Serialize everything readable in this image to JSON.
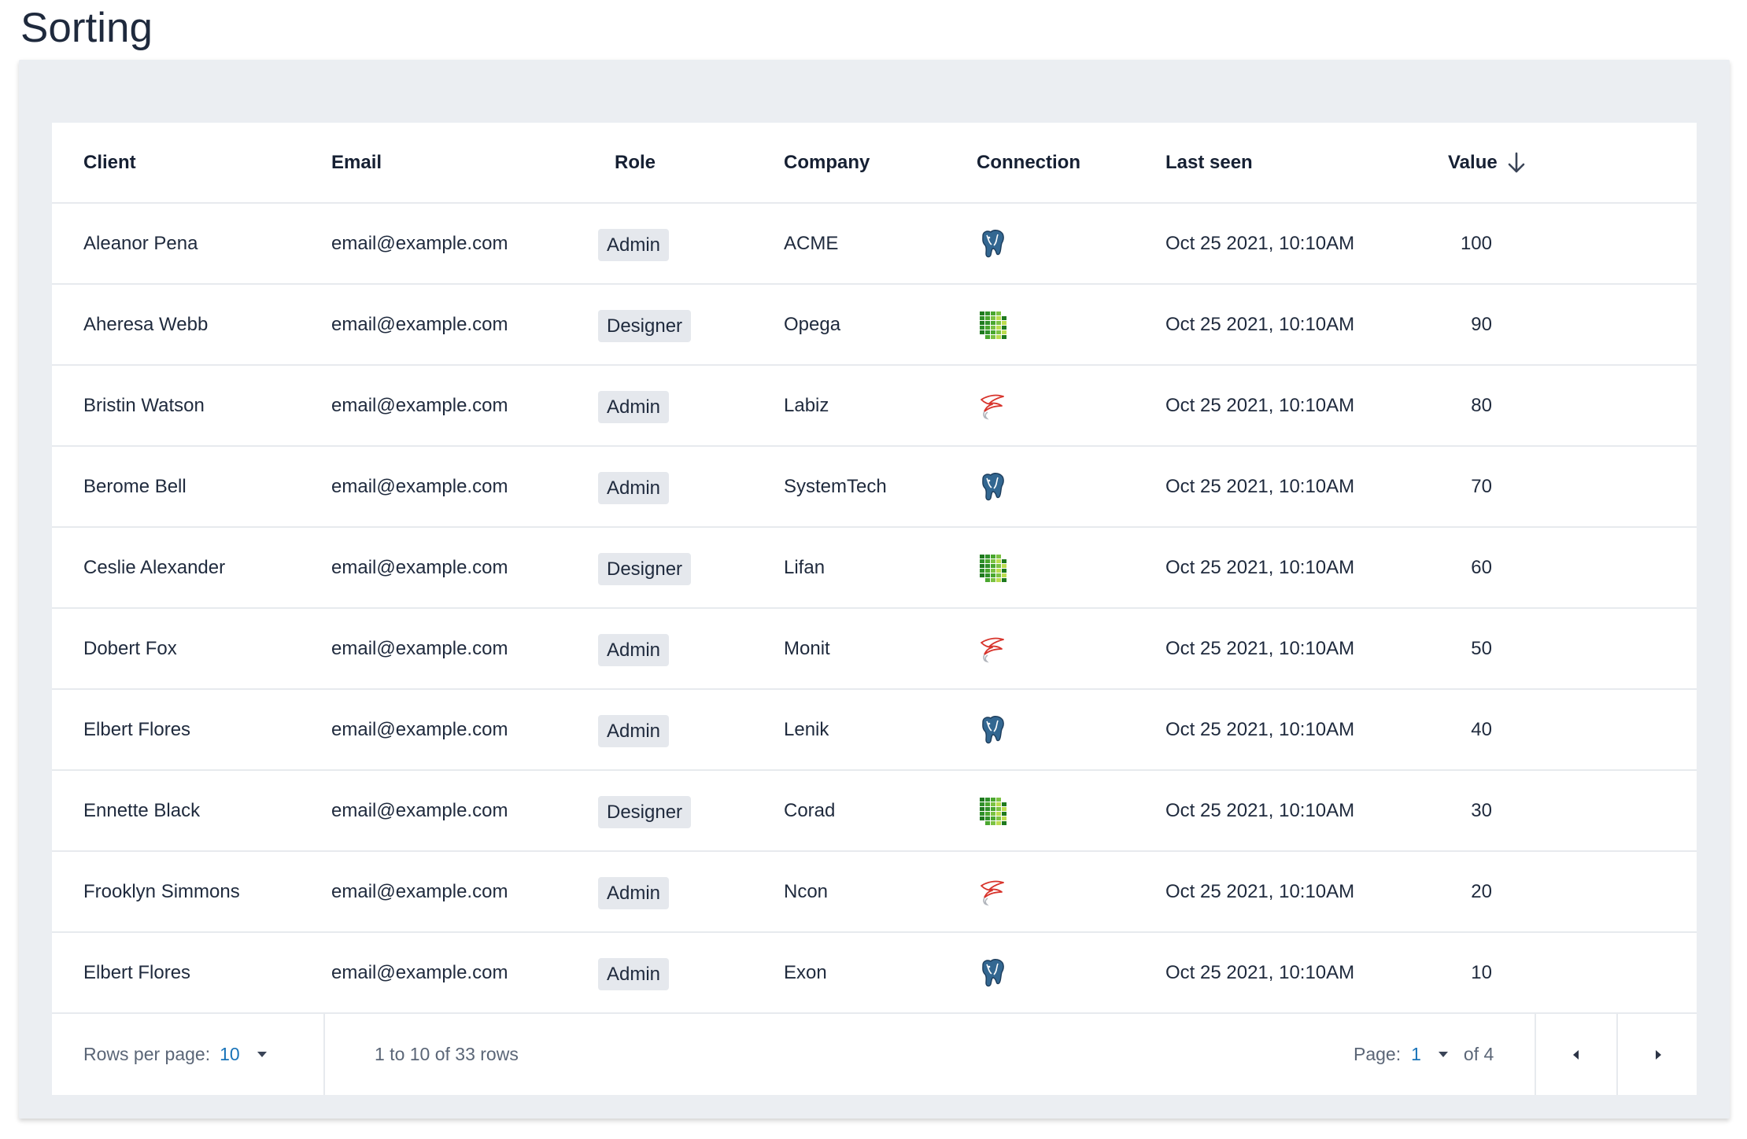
{
  "page": {
    "title": "Sorting"
  },
  "table": {
    "columns": {
      "client": "Client",
      "email": "Email",
      "role": "Role",
      "company": "Company",
      "connection": "Connection",
      "last_seen": "Last seen",
      "value": "Value"
    },
    "sort": {
      "column": "Value",
      "direction": "descending",
      "icon": "arrow-down-icon"
    },
    "rows": [
      {
        "client": "Aleanor Pena",
        "email": "email@example.com",
        "role": "Admin",
        "company": "ACME",
        "connection": "postgresql-icon",
        "last_seen": "Oct 25  2021, 10:10AM",
        "value": "100"
      },
      {
        "client": "Aheresa Webb",
        "email": "email@example.com",
        "role": "Designer",
        "company": "Opega",
        "connection": "grid-database-icon",
        "last_seen": "Oct 25  2021, 10:10AM",
        "value": "90"
      },
      {
        "client": "Bristin Watson",
        "email": "email@example.com",
        "role": "Admin",
        "company": "Labiz",
        "connection": "sql-server-icon",
        "last_seen": "Oct 25  2021, 10:10AM",
        "value": "80"
      },
      {
        "client": "Berome Bell",
        "email": "email@example.com",
        "role": "Admin",
        "company": "SystemTech",
        "connection": "postgresql-icon",
        "last_seen": "Oct 25  2021, 10:10AM",
        "value": "70"
      },
      {
        "client": "Ceslie Alexander",
        "email": "email@example.com",
        "role": "Designer",
        "company": "Lifan",
        "connection": "grid-database-icon",
        "last_seen": "Oct 25  2021, 10:10AM",
        "value": "60"
      },
      {
        "client": "Dobert Fox",
        "email": "email@example.com",
        "role": "Admin",
        "company": "Monit",
        "connection": "sql-server-icon",
        "last_seen": "Oct 25  2021, 10:10AM",
        "value": "50"
      },
      {
        "client": "Elbert Flores",
        "email": "email@example.com",
        "role": "Admin",
        "company": "Lenik",
        "connection": "postgresql-icon",
        "last_seen": "Oct 25  2021, 10:10AM",
        "value": "40"
      },
      {
        "client": "Ennette Black",
        "email": "email@example.com",
        "role": "Designer",
        "company": "Corad",
        "connection": "grid-database-icon",
        "last_seen": "Oct 25  2021, 10:10AM",
        "value": "30"
      },
      {
        "client": "Frooklyn Simmons",
        "email": "email@example.com",
        "role": "Admin",
        "company": "Ncon",
        "connection": "sql-server-icon",
        "last_seen": "Oct 25  2021, 10:10AM",
        "value": "20"
      },
      {
        "client": "Elbert Flores",
        "email": "email@example.com",
        "role": "Admin",
        "company": "Exon",
        "connection": "postgresql-icon",
        "last_seen": "Oct 25  2021, 10:10AM",
        "value": "10"
      }
    ]
  },
  "pagination": {
    "rows_per_page_label": "Rows per page:",
    "rows_per_page_value": "10",
    "range_text": "1 to 10 of 33 rows",
    "page_label": "Page:",
    "page_value": "1",
    "page_total": "of 4",
    "prev_icon": "caret-left-icon",
    "next_icon": "caret-right-icon"
  },
  "colors": {
    "accent": "#1a74b9",
    "panel_bg": "#ebeef2",
    "badge_bg": "#e5e8ed",
    "postgres_blue": "#336791",
    "grid_green": "#3c9a2e",
    "sqlserver_red": "#d8342c"
  }
}
